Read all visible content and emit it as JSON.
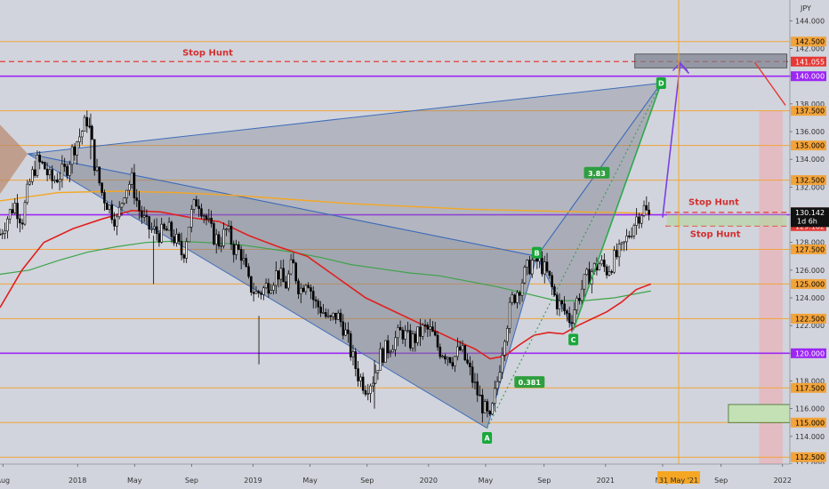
{
  "chart_data": {
    "type": "candlestick",
    "currency": "JPY",
    "ylim": [
      112,
      145.5
    ],
    "y_ticks": [
      112,
      114,
      116,
      118,
      120,
      122,
      124,
      126,
      128,
      130,
      132,
      134,
      136,
      138,
      140,
      142,
      144
    ],
    "x_labels": [
      {
        "label": "Aug",
        "t": 0.2
      },
      {
        "label": "2018",
        "t": 5.3
      },
      {
        "label": "May",
        "t": 9.2
      },
      {
        "label": "Sep",
        "t": 13.1
      },
      {
        "label": "2019",
        "t": 17.3
      },
      {
        "label": "May",
        "t": 21.2
      },
      {
        "label": "Sep",
        "t": 25.1
      },
      {
        "label": "2020",
        "t": 29.3
      },
      {
        "label": "May",
        "t": 33.2
      },
      {
        "label": "Sep",
        "t": 37.2
      },
      {
        "label": "2021",
        "t": 41.4
      },
      {
        "label": "May",
        "t": 45.3
      },
      {
        "label": "Sep",
        "t": 49.3
      },
      {
        "label": "2022",
        "t": 53.5
      }
    ],
    "x_range": [
      0,
      54
    ],
    "cursor_date": {
      "label": "31 May '21",
      "t": 46.4
    },
    "last_price": {
      "value": "130.142",
      "countdown": "1d 6h"
    },
    "levels": [
      {
        "price": 142.5,
        "label": "142.500",
        "kind": "orange"
      },
      {
        "price": 141.055,
        "label": "141.055",
        "kind": "red-dash"
      },
      {
        "price": 140.0,
        "label": "140.000",
        "kind": "purple"
      },
      {
        "price": 137.5,
        "label": "137.500",
        "kind": "orange"
      },
      {
        "price": 135.0,
        "label": "135.000",
        "kind": "orange"
      },
      {
        "price": 132.5,
        "label": "132.500",
        "kind": "orange"
      },
      {
        "price": 130.171,
        "label": "130.171",
        "kind": "red-dash"
      },
      {
        "price": 130.0,
        "label": "130.000",
        "kind": "purple"
      },
      {
        "price": 129.182,
        "label": "129.182",
        "kind": "red-dash"
      },
      {
        "price": 127.5,
        "label": "127.500",
        "kind": "orange"
      },
      {
        "price": 125.0,
        "label": "125.000",
        "kind": "orange"
      },
      {
        "price": 122.5,
        "label": "122.500",
        "kind": "orange"
      },
      {
        "price": 120.0,
        "label": "120.000",
        "kind": "purple"
      },
      {
        "price": 117.5,
        "label": "117.500",
        "kind": "orange"
      },
      {
        "price": 115.0,
        "label": "115.000",
        "kind": "orange"
      },
      {
        "price": 112.5,
        "label": "112.500",
        "kind": "orange"
      }
    ],
    "annotations": [
      {
        "text": "Stop Hunt",
        "t": 14.2,
        "price": 141.5
      },
      {
        "text": "Stop Hunt",
        "t": 48.8,
        "price": 130.7
      },
      {
        "text": "Stop Hunt",
        "t": 48.9,
        "price": 128.4
      }
    ],
    "pattern_points": [
      {
        "label": "A",
        "t": 33.3,
        "price": 114.6
      },
      {
        "label": "B",
        "t": 36.7,
        "price": 127.0
      },
      {
        "label": "C",
        "t": 39.2,
        "price": 121.7
      },
      {
        "label": "D",
        "t": 45.2,
        "price": 139.5
      }
    ],
    "fib_labels": [
      {
        "text": "3.83",
        "t": 40.8,
        "price": 133.0
      },
      {
        "text": "0.381",
        "t": 36.2,
        "price": 117.9
      }
    ],
    "candle_path": [
      [
        0.0,
        128.6
      ],
      [
        0.5,
        129.8
      ],
      [
        1.0,
        130.8
      ],
      [
        1.5,
        129.6
      ],
      [
        2.0,
        132.2
      ],
      [
        2.5,
        133.8
      ],
      [
        3.0,
        133.5
      ],
      [
        3.5,
        132.4
      ],
      [
        4.0,
        132.8
      ],
      [
        4.5,
        133.2
      ],
      [
        5.0,
        134.8
      ],
      [
        5.5,
        135.8
      ],
      [
        6.0,
        137.0
      ],
      [
        6.5,
        133.5
      ],
      [
        7.0,
        131.5
      ],
      [
        7.5,
        130.5
      ],
      [
        8.0,
        129.5
      ],
      [
        8.5,
        131.8
      ],
      [
        9.0,
        132.5
      ],
      [
        9.5,
        130.4
      ],
      [
        10.0,
        129.2
      ],
      [
        10.5,
        128.8
      ],
      [
        11.0,
        128.6
      ],
      [
        11.5,
        128.9
      ],
      [
        12.0,
        128.2
      ],
      [
        12.5,
        127.0
      ],
      [
        13.0,
        129.8
      ],
      [
        13.5,
        131.2
      ],
      [
        14.0,
        130.0
      ],
      [
        14.5,
        128.6
      ],
      [
        15.0,
        128.0
      ],
      [
        15.5,
        128.9
      ],
      [
        16.0,
        127.6
      ],
      [
        16.5,
        127.2
      ],
      [
        17.0,
        125.0
      ],
      [
        17.5,
        124.3
      ],
      [
        18.0,
        124.6
      ],
      [
        18.5,
        125.2
      ],
      [
        19.0,
        125.9
      ],
      [
        19.5,
        124.8
      ],
      [
        20.0,
        126.5
      ],
      [
        20.5,
        124.5
      ],
      [
        21.0,
        125.6
      ],
      [
        21.5,
        123.6
      ],
      [
        22.0,
        123.2
      ],
      [
        22.5,
        122.2
      ],
      [
        23.0,
        122.8
      ],
      [
        23.5,
        121.9
      ],
      [
        24.0,
        120.0
      ],
      [
        24.5,
        118.4
      ],
      [
        25.0,
        117.6
      ],
      [
        25.5,
        118.2
      ],
      [
        26.0,
        119.8
      ],
      [
        26.5,
        120.4
      ],
      [
        27.0,
        121.0
      ],
      [
        27.5,
        121.6
      ],
      [
        28.0,
        120.8
      ],
      [
        28.5,
        121.2
      ],
      [
        29.0,
        121.8
      ],
      [
        29.5,
        121.5
      ],
      [
        30.0,
        120.3
      ],
      [
        30.5,
        120.0
      ],
      [
        31.0,
        119.6
      ],
      [
        31.5,
        120.3
      ],
      [
        32.0,
        119.0
      ],
      [
        32.5,
        117.5
      ],
      [
        33.0,
        116.2
      ],
      [
        33.5,
        115.0
      ],
      [
        34.0,
        118.0
      ],
      [
        34.5,
        121.5
      ],
      [
        35.0,
        123.8
      ],
      [
        35.5,
        124.8
      ],
      [
        36.0,
        126.0
      ],
      [
        36.5,
        126.8
      ],
      [
        37.0,
        126.4
      ],
      [
        37.5,
        125.5
      ],
      [
        38.0,
        123.8
      ],
      [
        38.5,
        123.2
      ],
      [
        39.0,
        122.4
      ],
      [
        39.5,
        124.0
      ],
      [
        40.0,
        125.2
      ],
      [
        40.5,
        126.0
      ],
      [
        41.0,
        126.5
      ],
      [
        41.5,
        126.0
      ],
      [
        42.0,
        126.8
      ],
      [
        42.5,
        127.4
      ],
      [
        43.0,
        128.6
      ],
      [
        43.5,
        129.8
      ],
      [
        44.0,
        130.5
      ],
      [
        44.5,
        129.6
      ]
    ],
    "ma_red": [
      [
        0.0,
        123.3
      ],
      [
        1.5,
        126.0
      ],
      [
        3.0,
        128.0
      ],
      [
        5.0,
        129.0
      ],
      [
        7.0,
        129.7
      ],
      [
        9.0,
        130.3
      ],
      [
        11.0,
        130.2
      ],
      [
        13.0,
        129.8
      ],
      [
        15.0,
        129.5
      ],
      [
        17.0,
        128.5
      ],
      [
        19.0,
        127.7
      ],
      [
        21.0,
        127.0
      ],
      [
        23.0,
        125.5
      ],
      [
        25.0,
        124.0
      ],
      [
        27.0,
        123.0
      ],
      [
        29.0,
        122.0
      ],
      [
        31.0,
        121.0
      ],
      [
        32.5,
        120.3
      ],
      [
        33.5,
        119.6
      ],
      [
        34.5,
        119.8
      ],
      [
        35.5,
        120.6
      ],
      [
        36.5,
        121.3
      ],
      [
        37.5,
        121.5
      ],
      [
        38.5,
        121.4
      ],
      [
        39.5,
        122.0
      ],
      [
        40.5,
        122.5
      ],
      [
        41.5,
        123.0
      ],
      [
        42.5,
        123.7
      ],
      [
        43.5,
        124.6
      ],
      [
        44.5,
        125.0
      ]
    ],
    "ma_green": [
      [
        0.0,
        125.7
      ],
      [
        2.0,
        126.0
      ],
      [
        4.0,
        126.7
      ],
      [
        6.0,
        127.3
      ],
      [
        8.0,
        127.7
      ],
      [
        10.0,
        128.0
      ],
      [
        12.0,
        128.1
      ],
      [
        14.0,
        128.0
      ],
      [
        16.0,
        127.9
      ],
      [
        18.0,
        127.6
      ],
      [
        20.0,
        127.3
      ],
      [
        22.0,
        126.9
      ],
      [
        24.0,
        126.4
      ],
      [
        26.0,
        126.1
      ],
      [
        28.0,
        125.8
      ],
      [
        30.0,
        125.6
      ],
      [
        32.0,
        125.2
      ],
      [
        34.0,
        124.8
      ],
      [
        36.0,
        124.3
      ],
      [
        38.0,
        123.8
      ],
      [
        40.0,
        123.8
      ],
      [
        42.0,
        124.0
      ],
      [
        44.5,
        124.5
      ]
    ],
    "ma_orange": [
      [
        0.0,
        131.0
      ],
      [
        4.0,
        131.6
      ],
      [
        8.0,
        131.7
      ],
      [
        12.0,
        131.6
      ],
      [
        16.0,
        131.4
      ],
      [
        20.0,
        131.1
      ],
      [
        24.0,
        130.8
      ],
      [
        28.0,
        130.6
      ],
      [
        32.0,
        130.4
      ],
      [
        36.0,
        130.3
      ],
      [
        40.0,
        130.2
      ],
      [
        44.5,
        130.1
      ]
    ]
  }
}
